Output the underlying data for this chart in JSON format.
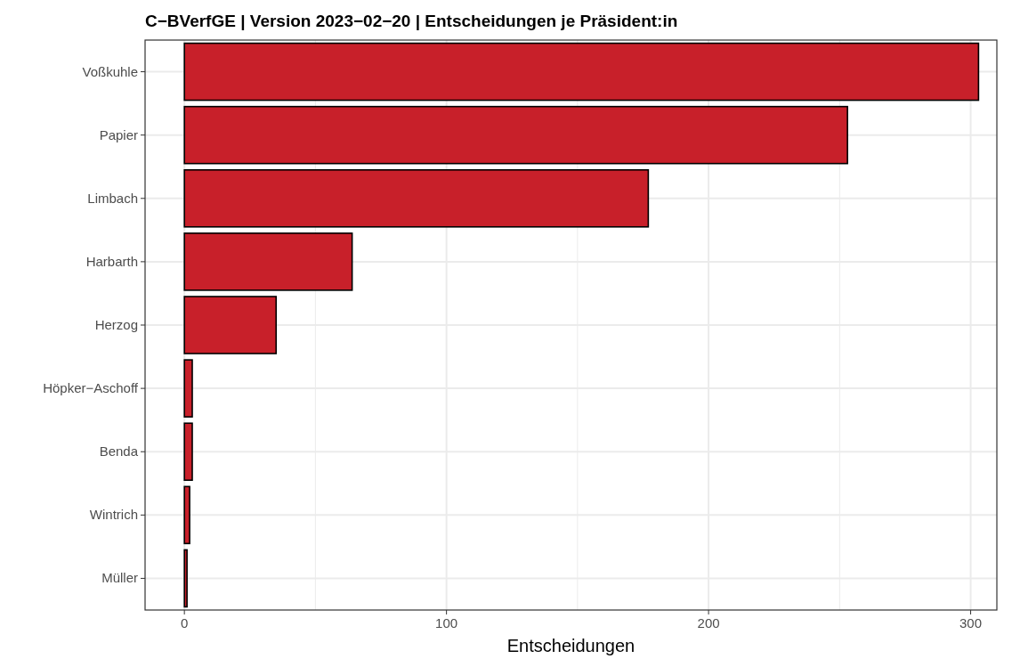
{
  "chart_data": {
    "type": "bar",
    "orientation": "horizontal",
    "title": "C−BVerfGE | Version 2023−02−20 | Entscheidungen je Präsident:in",
    "xlabel": "Entscheidungen",
    "categories": [
      "Voßkuhle",
      "Papier",
      "Limbach",
      "Harbarth",
      "Herzog",
      "Höpker−Aschoff",
      "Benda",
      "Wintrich",
      "Müller"
    ],
    "values": [
      303,
      253,
      177,
      64,
      35,
      3,
      3,
      2,
      1
    ],
    "color": "#c8202a",
    "xlim": [
      -15,
      310
    ],
    "xticks": [
      0,
      {
        "value": 50,
        "label": null
      },
      100,
      {
        "value": 150,
        "label": null
      },
      200,
      {
        "value": 250,
        "label": null
      },
      300
    ],
    "grid": true
  }
}
